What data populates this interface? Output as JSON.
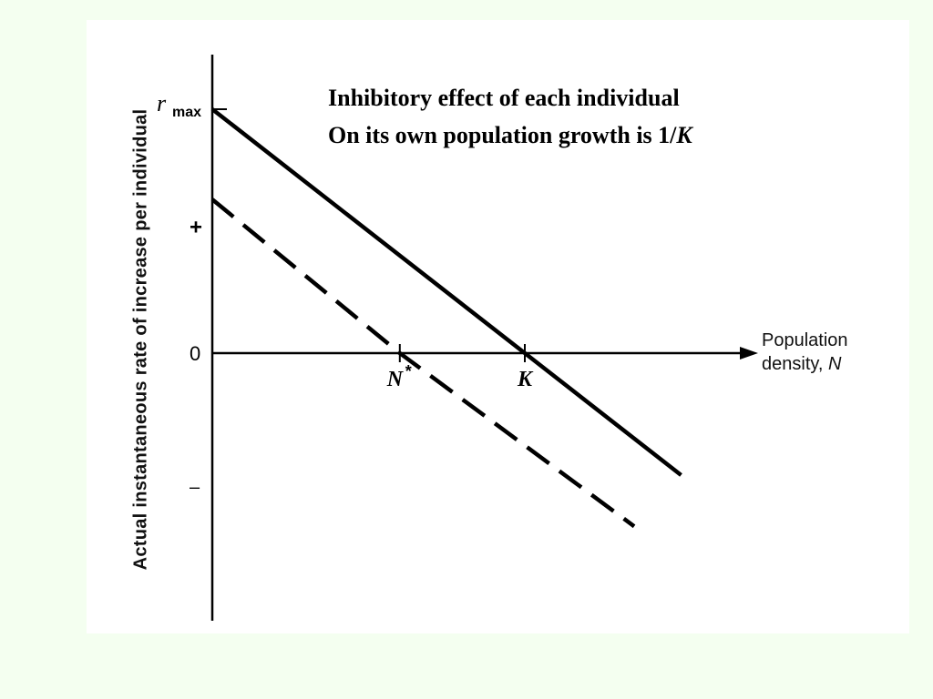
{
  "title_lines": [
    "Inhibitory effect of each individual",
    "On its own population growth is 1/"
  ],
  "title_italic": "K",
  "ylabel": "Actual instantaneous rate of increase per individual",
  "xlabel_line1": "Population",
  "xlabel_line2": "density, ",
  "xlabel_var": "N",
  "y_tick_labels": {
    "rmax_r": "r",
    "rmax_sub": "max",
    "plus": "+",
    "zero": "0",
    "minus": "–"
  },
  "x_tick_labels": {
    "nstar": "N",
    "nstar_sup": "*",
    "k": "K"
  },
  "colors": {
    "background": "#f4fff0",
    "panel": "#ffffff",
    "ink": "#000000"
  },
  "chart_data": {
    "type": "line",
    "title": "Inhibitory effect of each individual On its own population growth is 1/K",
    "xlabel": "Population density, N",
    "ylabel": "Actual instantaneous rate of increase per individual",
    "xlim": [
      0,
      1.5
    ],
    "ylim": [
      -1.1,
      1.25
    ],
    "y_ticks": [
      {
        "label": "r_max",
        "value": 1.0
      },
      {
        "label": "+",
        "value": 0.52
      },
      {
        "label": "0",
        "value": 0
      },
      {
        "label": "-",
        "value": -0.55
      }
    ],
    "x_ticks": [
      {
        "label": "N*",
        "value": 0.6
      },
      {
        "label": "K",
        "value": 1.0
      }
    ],
    "series": [
      {
        "style": "solid",
        "x": [
          0,
          1.0,
          1.5
        ],
        "y": [
          1.0,
          0,
          -0.5
        ]
      },
      {
        "style": "dashed",
        "x": [
          0,
          0.6,
          1.35
        ],
        "y": [
          0.63,
          0,
          -0.71
        ]
      }
    ]
  }
}
